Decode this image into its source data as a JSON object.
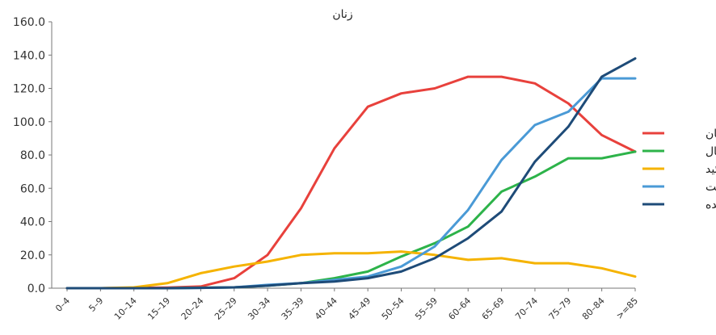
{
  "chart_data": {
    "type": "line",
    "title": "زنان",
    "xlabel": "",
    "ylabel": "",
    "ylim": [
      0,
      160
    ],
    "yticks": [
      "0.0",
      "20.0",
      "40.0",
      "60.0",
      "80.0",
      "100.0",
      "120.0",
      "140.0",
      "160.0"
    ],
    "categories": [
      "0–4",
      "5–9",
      "10–14",
      "15–19",
      "20–24",
      "25–29",
      "30–34",
      "35–39",
      "40–44",
      "45–49",
      "50–54",
      "55–59",
      "60–64",
      "65–69",
      "70–74",
      "75–79",
      "80–84",
      ">=85"
    ],
    "grid": false,
    "legend_position": "right",
    "series": [
      {
        "name": "پستان",
        "color": "#e8413c",
        "values": [
          0,
          0,
          0.2,
          0.4,
          1,
          6,
          20,
          48,
          84,
          109,
          117,
          120,
          127,
          127,
          123,
          111,
          92,
          82
        ]
      },
      {
        "name": "کلورکتال",
        "color": "#2db34a",
        "values": [
          0,
          0,
          0,
          0,
          0.3,
          0.5,
          1.5,
          3,
          6,
          10,
          19,
          27,
          37,
          58,
          67,
          78,
          78,
          82
        ]
      },
      {
        "name": "تیروئید",
        "color": "#f5b300",
        "values": [
          0,
          0,
          0.5,
          3,
          9,
          13,
          16,
          20,
          21,
          21,
          22,
          20,
          17,
          18,
          15,
          15,
          12,
          7
        ]
      },
      {
        "name": "پوست",
        "color": "#4a9ad6",
        "values": [
          0,
          0,
          0,
          0,
          0.2,
          0.5,
          2,
          3,
          5,
          7,
          13,
          25,
          47,
          77,
          98,
          106,
          126,
          126
        ]
      },
      {
        "name": "معده",
        "color": "#1e4b78",
        "values": [
          0,
          0,
          0,
          0,
          0.2,
          0.5,
          1.5,
          3,
          4,
          6,
          10,
          18,
          30,
          46,
          76,
          97,
          127,
          138
        ]
      }
    ]
  }
}
